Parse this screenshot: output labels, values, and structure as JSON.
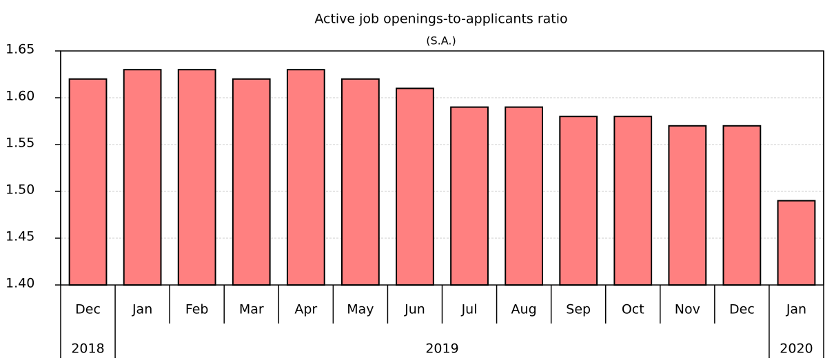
{
  "chart_data": {
    "type": "bar",
    "title": "Active job openings-to-applicants ratio",
    "subtitle": "(S.A.)",
    "categories": [
      "Dec",
      "Jan",
      "Feb",
      "Mar",
      "Apr",
      "May",
      "Jun",
      "Jul",
      "Aug",
      "Sep",
      "Oct",
      "Nov",
      "Dec",
      "Jan"
    ],
    "groups": [
      {
        "label": "2018",
        "count": 1
      },
      {
        "label": "2019",
        "count": 12
      },
      {
        "label": "2020",
        "count": 1
      }
    ],
    "values": [
      1.62,
      1.63,
      1.63,
      1.62,
      1.63,
      1.62,
      1.61,
      1.59,
      1.59,
      1.58,
      1.58,
      1.57,
      1.57,
      1.49
    ],
    "color": "#ff8080",
    "ylim": [
      1.4,
      1.65
    ],
    "yticks": [
      {
        "value": 1.4,
        "label": "1.40"
      },
      1.45,
      {
        "value": 1.5,
        "label": "1.50"
      },
      1.55,
      {
        "value": 1.6,
        "label": "1.60"
      },
      1.65
    ],
    "grid": true
  }
}
